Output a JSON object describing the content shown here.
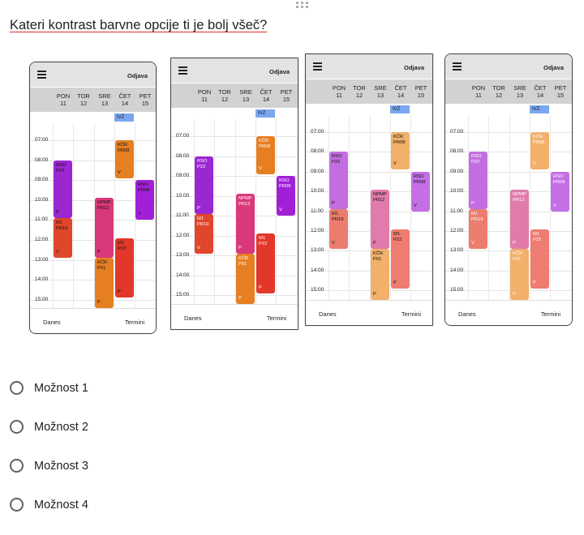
{
  "question": "Kateri kontrast barvne opcije ti je bolj všeč?",
  "options": [
    {
      "label": "Možnost 1"
    },
    {
      "label": "Možnost 2"
    },
    {
      "label": "Možnost 3"
    },
    {
      "label": "Možnost 4"
    }
  ],
  "phone_ui": {
    "logout_label": "Odjava",
    "days": [
      {
        "name": "PON",
        "num": "11"
      },
      {
        "name": "TOR",
        "num": "12"
      },
      {
        "name": "SRE",
        "num": "13"
      },
      {
        "name": "ČET",
        "num": "14"
      },
      {
        "name": "PET",
        "num": "15"
      }
    ],
    "times": [
      "07:00",
      "08:00",
      "09:00",
      "10:00",
      "11:00",
      "12:00",
      "13:00",
      "14:00",
      "15:00"
    ],
    "banner": "IVZ",
    "today_label": "Danes",
    "appointments_label": "Termini"
  },
  "events": [
    {
      "title": "RSO",
      "room": "P22",
      "kind": "P"
    },
    {
      "title": "M1",
      "room": "PR19",
      "kind": "V"
    },
    {
      "title": "NPMP",
      "room": "PR12",
      "kind": "P"
    },
    {
      "title": "KČR",
      "room": "P01",
      "kind": "P"
    },
    {
      "title": "KČR",
      "room": "PR08",
      "kind": "V"
    },
    {
      "title": "M1",
      "room": "P22",
      "kind": "P"
    },
    {
      "title": "RSO",
      "room": "PR08",
      "kind": "V"
    }
  ],
  "color_schemes": [
    {
      "option": "Možnost 1",
      "colors": {
        "rso_p22": "#9b27d1",
        "m1_pr19": "#e0462c",
        "npmp": "#d9387a",
        "kcr_p01": "#e67e22",
        "kcr_pr08": "#e67e22",
        "m1_p22": "#e2372a",
        "rso_pr08": "#a21fd8"
      },
      "text": "#111111"
    },
    {
      "option": "Možnost 2",
      "colors": {
        "rso_p22": "#9b27d1",
        "m1_pr19": "#e0462c",
        "npmp": "#d9387a",
        "kcr_p01": "#e67e22",
        "kcr_pr08": "#e67e22",
        "m1_p22": "#e2372a",
        "rso_pr08": "#a21fd8"
      },
      "text": "#ffffff"
    },
    {
      "option": "Možnost 3",
      "colors": {
        "rso_p22": "#c36ee0",
        "m1_pr19": "#ec7d6e",
        "npmp": "#e07bab",
        "kcr_p01": "#f2b06a",
        "kcr_pr08": "#f2b06a",
        "m1_p22": "#ee7c70",
        "rso_pr08": "#c46fe6"
      },
      "text": "#111111"
    },
    {
      "option": "Možnost 4",
      "colors": {
        "rso_p22": "#c36ee0",
        "m1_pr19": "#ec7d6e",
        "npmp": "#e07bab",
        "kcr_p01": "#f2b06a",
        "kcr_pr08": "#f2b06a",
        "m1_p22": "#ee7c70",
        "rso_pr08": "#c46fe6"
      },
      "text": "#ffffff"
    }
  ]
}
